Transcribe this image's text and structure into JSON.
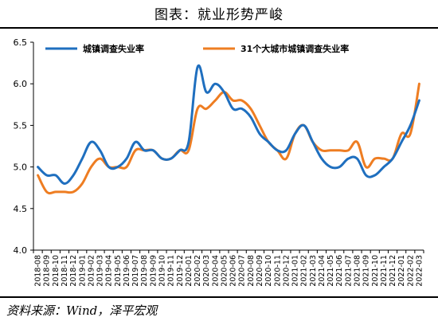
{
  "title": "图表：就业形势严峻",
  "source": "资料来源：Wind，泽平宏观",
  "chart_data": {
    "type": "line",
    "title": "图表：就业形势严峻",
    "xlabel": "",
    "ylabel": "",
    "ylim": [
      4.0,
      6.5
    ],
    "yticks": [
      "4.0",
      "4.5",
      "5.0",
      "5.5",
      "6.0",
      "6.5"
    ],
    "grid": false,
    "legend_position": "top",
    "categories": [
      "2018-08",
      "2018-09",
      "2018-10",
      "2018-11",
      "2018-12",
      "2019-01",
      "2019-02",
      "2019-03",
      "2019-04",
      "2019-05",
      "2019-06",
      "2019-07",
      "2019-08",
      "2019-09",
      "2019-10",
      "2019-11",
      "2019-12",
      "2020-01",
      "2020-02",
      "2020-03",
      "2020-04",
      "2020-05",
      "2020-06",
      "2020-07",
      "2020-08",
      "2020-09",
      "2020-10",
      "2020-11",
      "2020-12",
      "2021-01",
      "2021-02",
      "2021-03",
      "2021-04",
      "2021-05",
      "2021-06",
      "2021-07",
      "2021-08",
      "2021-09",
      "2021-10",
      "2021-11",
      "2021-12",
      "2022-01",
      "2022-02",
      "2022-03"
    ],
    "series": [
      {
        "name": "城镇调查失业率",
        "color": "#1f6fbf",
        "values": [
          5.0,
          4.9,
          4.9,
          4.8,
          4.9,
          5.1,
          5.3,
          5.2,
          5.0,
          5.0,
          5.1,
          5.3,
          5.2,
          5.2,
          5.1,
          5.1,
          5.2,
          5.3,
          6.2,
          5.9,
          6.0,
          5.9,
          5.7,
          5.7,
          5.6,
          5.4,
          5.3,
          5.2,
          5.2,
          5.4,
          5.5,
          5.3,
          5.1,
          5.0,
          5.0,
          5.1,
          5.1,
          4.9,
          4.9,
          5.0,
          5.1,
          5.3,
          5.5,
          5.8
        ]
      },
      {
        "name": "31个大城市城镇调查失业率",
        "color": "#ee7d22",
        "values": [
          4.9,
          4.7,
          4.7,
          4.7,
          4.7,
          4.8,
          5.0,
          5.1,
          5.0,
          5.0,
          5.0,
          5.2,
          5.2,
          5.2,
          5.1,
          5.1,
          5.2,
          5.2,
          5.7,
          5.7,
          5.8,
          5.9,
          5.8,
          5.8,
          5.7,
          5.5,
          5.3,
          5.2,
          5.1,
          5.4,
          5.5,
          5.3,
          5.2,
          5.2,
          5.2,
          5.2,
          5.3,
          5.0,
          5.1,
          5.1,
          5.1,
          5.4,
          5.4,
          6.0
        ]
      }
    ]
  }
}
